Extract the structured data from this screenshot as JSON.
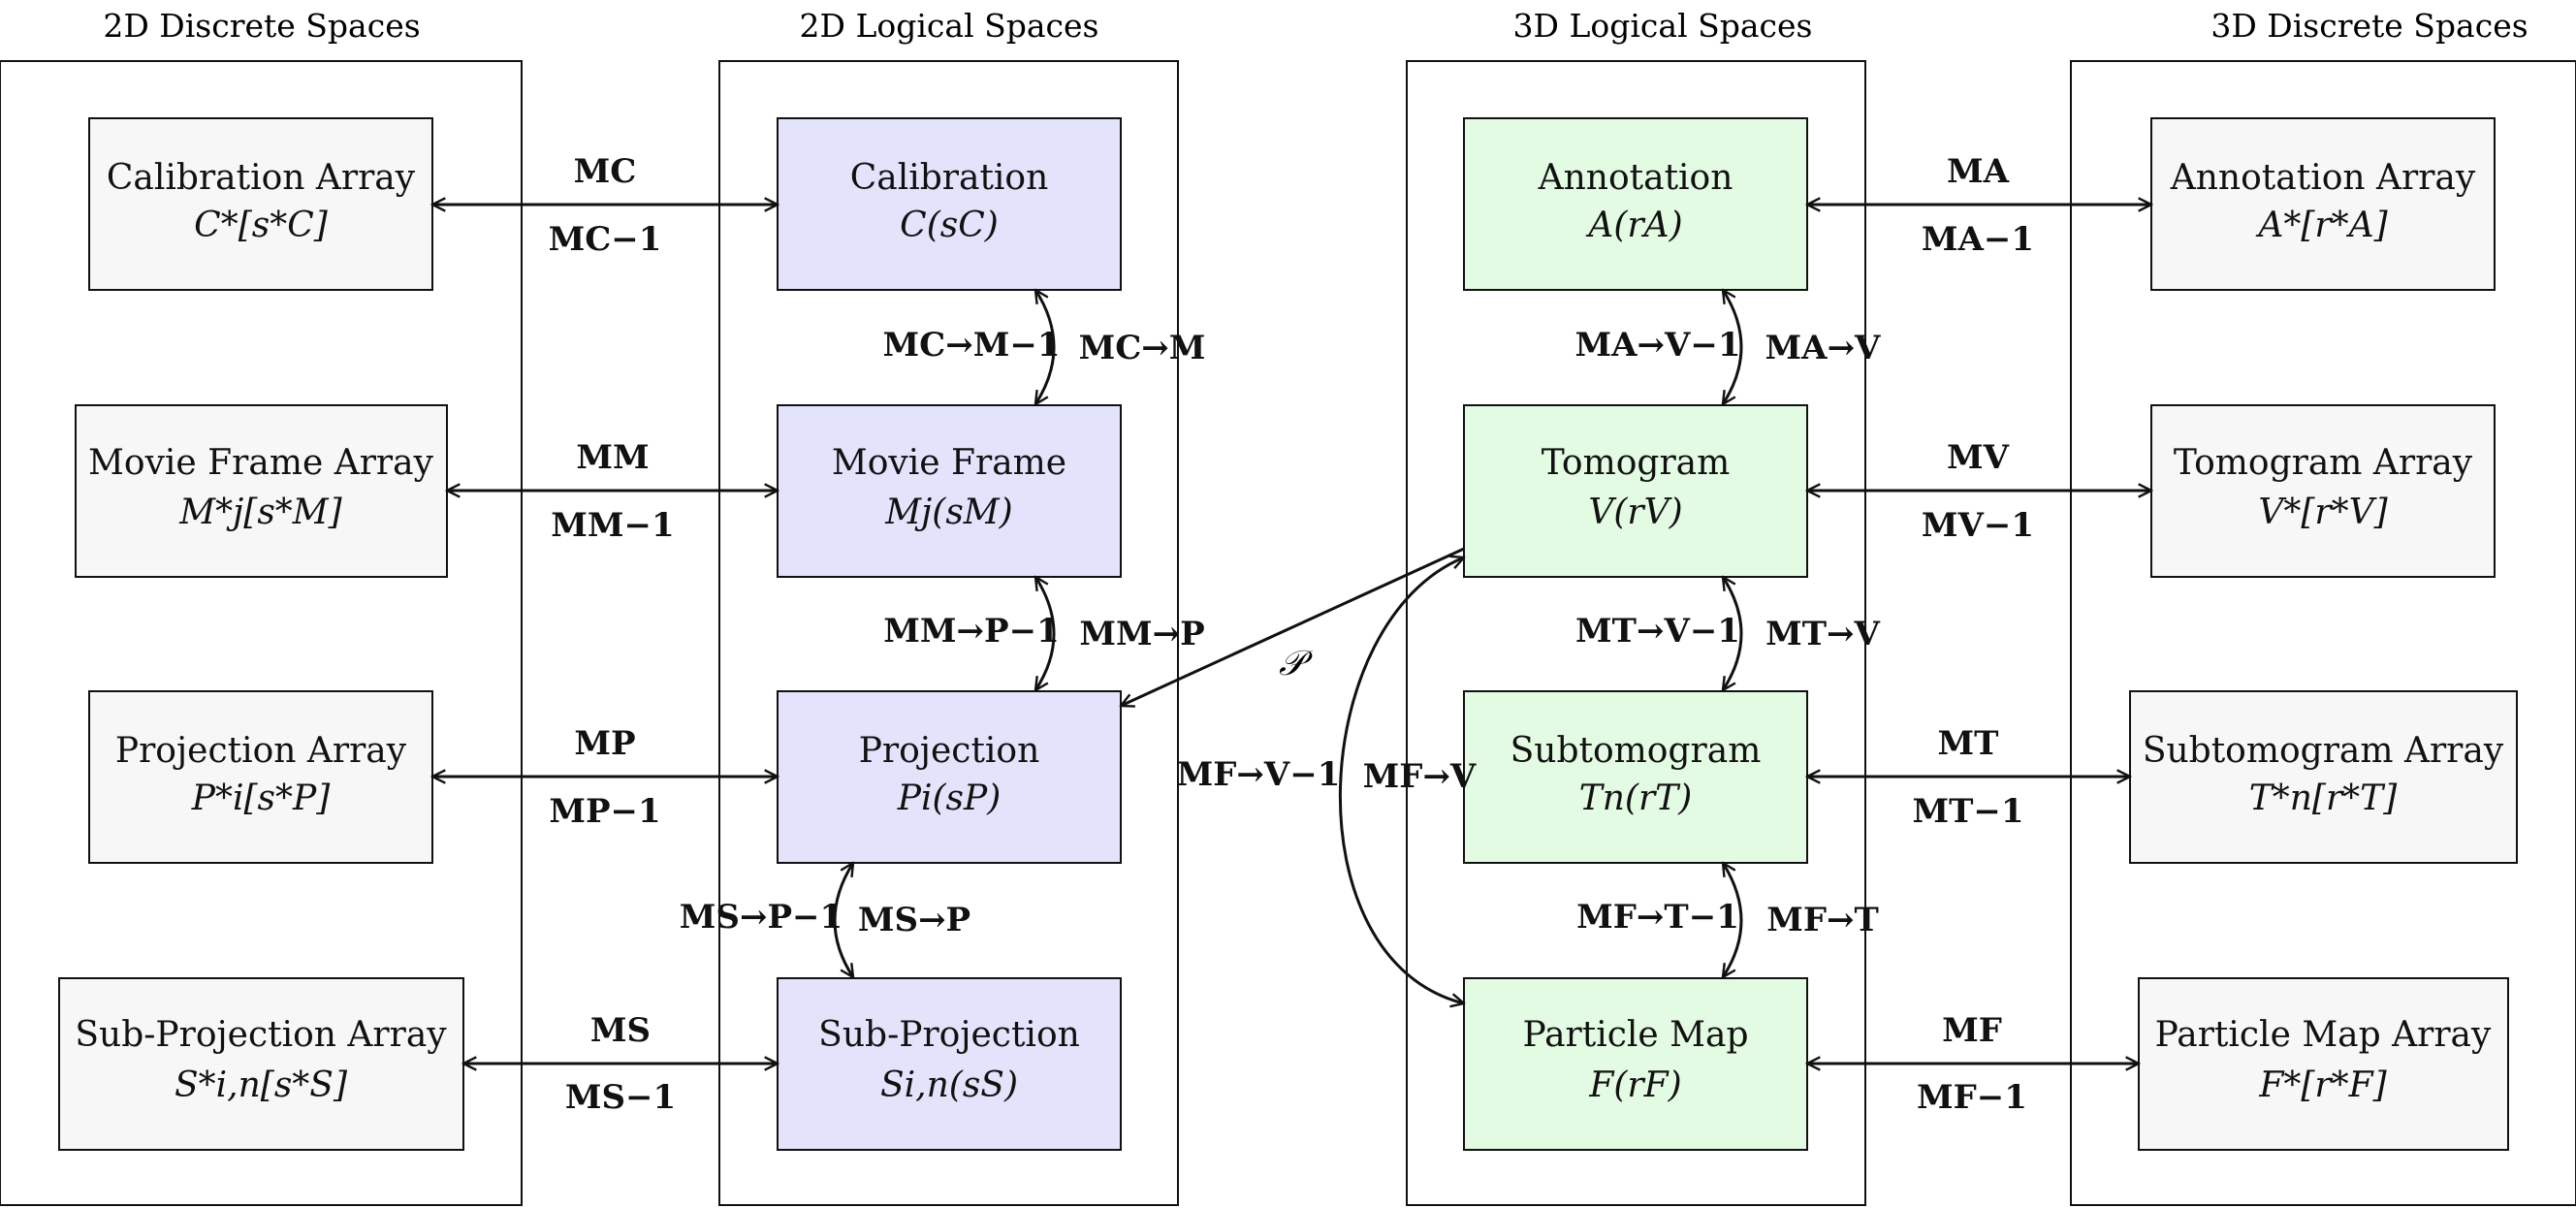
{
  "columns": {
    "discrete_2d": "2D Discrete Spaces",
    "logical_2d": "2D Logical Spaces",
    "logical_3d": "3D Logical Spaces",
    "discrete_3d": "3D Discrete Spaces"
  },
  "boxes": {
    "calib_array": {
      "name": "Calibration Array",
      "math": "C*[s*C]"
    },
    "movie_array": {
      "name": "Movie Frame Array",
      "math": "M*j[s*M]"
    },
    "proj_array": {
      "name": "Projection Array",
      "math": "P*i[s*P]"
    },
    "subproj_array": {
      "name": "Sub-Projection Array",
      "math": "S*i,n[s*S]"
    },
    "calib": {
      "name": "Calibration",
      "math": "C(sC)"
    },
    "movie": {
      "name": "Movie Frame",
      "math": "Mj(sM)"
    },
    "proj": {
      "name": "Projection",
      "math": "Pi(sP)"
    },
    "subproj": {
      "name": "Sub-Projection",
      "math": "Si,n(sS)"
    },
    "annot": {
      "name": "Annotation",
      "math": "A(rA)"
    },
    "tomo": {
      "name": "Tomogram",
      "math": "V(rV)"
    },
    "subtomo": {
      "name": "Subtomogram",
      "math": "Tn(rT)"
    },
    "particle": {
      "name": "Particle Map",
      "math": "F(rF)"
    },
    "annot_array": {
      "name": "Annotation Array",
      "math": "A*[r*A]"
    },
    "tomo_array": {
      "name": "Tomogram Array",
      "math": "V*[r*V]"
    },
    "subtomo_array": {
      "name": "Subtomogram Array",
      "math": "T*n[r*T]"
    },
    "particle_array": {
      "name": "Particle Map Array",
      "math": "F*[r*F]"
    }
  },
  "transforms": {
    "MC": "MC",
    "MC_inv": "MC−1",
    "MM": "MM",
    "MM_inv": "MM−1",
    "MP": "MP",
    "MP_inv": "MP−1",
    "MS": "MS",
    "MS_inv": "MS−1",
    "MCM": "MC→M",
    "MCM_inv": "MC→M−1",
    "MMP": "MM→P",
    "MMP_inv": "MM→P−1",
    "MSP": "MS→P",
    "MSP_inv": "MS→P−1",
    "proj_op": "𝒫",
    "MFV": "MF→V",
    "MFV_inv": "MF→V−1",
    "MAV": "MA→V",
    "MAV_inv": "MA→V−1",
    "MTV": "MT→V",
    "MTV_inv": "MT→V−1",
    "MFT": "MF→T",
    "MFT_inv": "MF→T−1",
    "MA": "MA",
    "MA_inv": "MA−1",
    "MV": "MV",
    "MV_inv": "MV−1",
    "MT": "MT",
    "MT_inv": "MT−1",
    "MF": "MF",
    "MF_inv": "MF−1"
  },
  "colors": {
    "discrete_fill": "#f7f7f7",
    "logical2d_fill": "#e3e3fb",
    "logical3d_fill": "#e3fae3",
    "stroke": "#111111"
  }
}
